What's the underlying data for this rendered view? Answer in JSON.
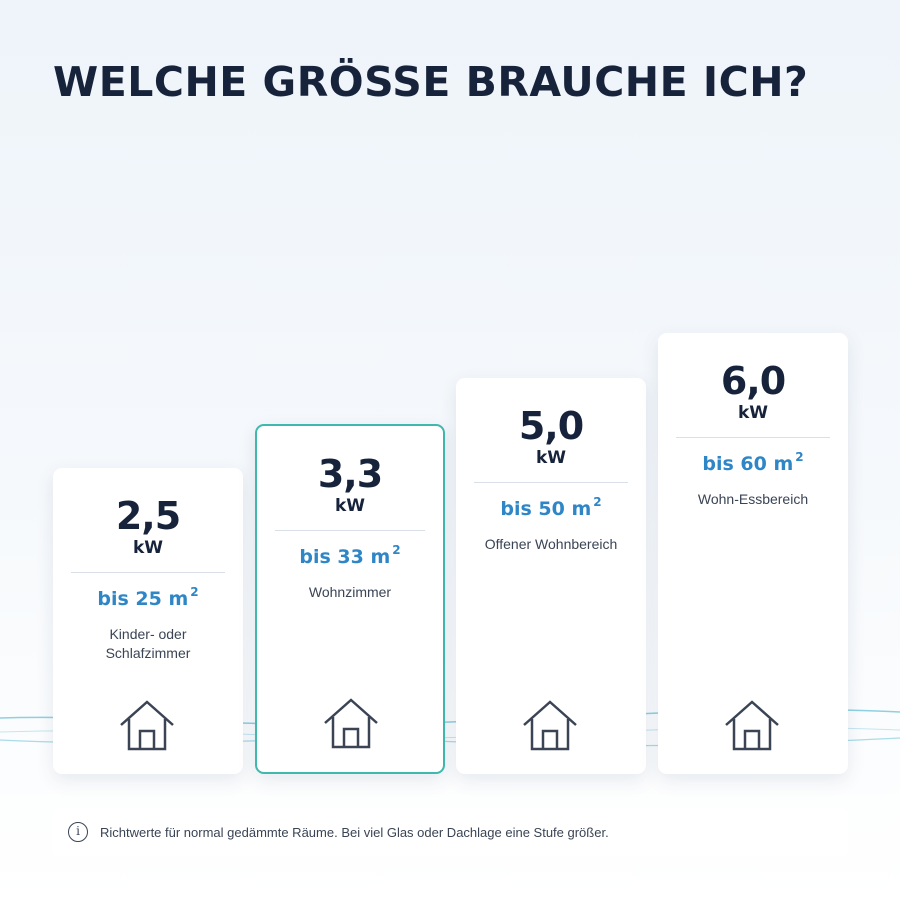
{
  "title": "WELCHE GRÖSSE BRAUCHE ICH?",
  "cards": [
    {
      "power": "2,5",
      "unit": "kW",
      "area": "bis 25 m",
      "area_sup": "2",
      "room": "Kinder- oder Schlafzimmer",
      "highlighted": false
    },
    {
      "power": "3,3",
      "unit": "kW",
      "area": "bis 33 m",
      "area_sup": "2",
      "room": "Wohnzimmer",
      "highlighted": true
    },
    {
      "power": "5,0",
      "unit": "kW",
      "area": "bis 50 m",
      "area_sup": "2",
      "room": "Offener Wohnbereich",
      "highlighted": false
    },
    {
      "power": "6,0",
      "unit": "kW",
      "area": "bis 60 m",
      "area_sup": "2",
      "room": "Wohn-Essbereich",
      "highlighted": false
    }
  ],
  "card_icon": "house-icon",
  "info": {
    "icon": "info-icon",
    "icon_glyph": "i",
    "text": "Richtwerte für normal gedämmte Räume. Bei viel Glas oder Dachlage eine Stufe größer."
  },
  "colors": {
    "title": "#16233a",
    "accent_blue": "#2f86c7",
    "highlight_border": "#3fb8ad",
    "wave": "#7cc8dc"
  }
}
